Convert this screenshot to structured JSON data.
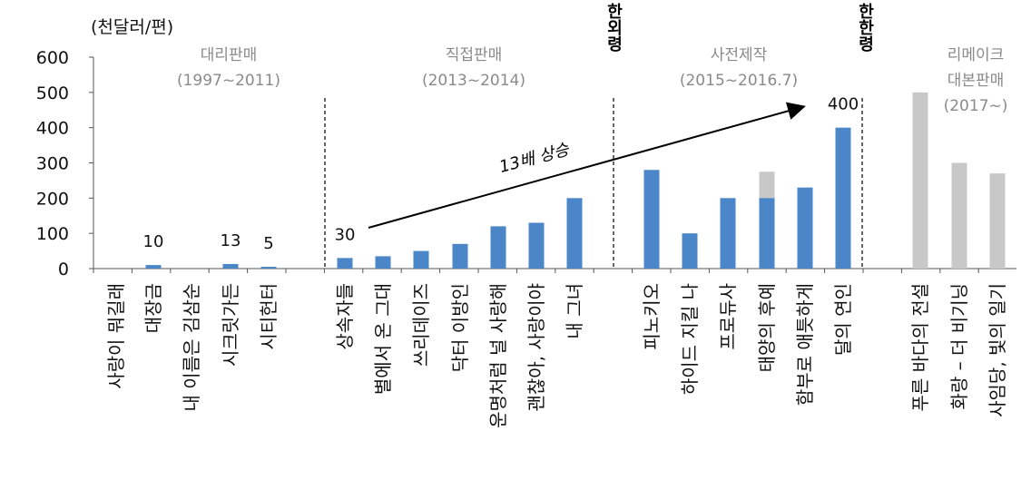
{
  "chart_data": {
    "type": "bar",
    "unit_label": "(천달러/편)",
    "ylim": [
      0,
      600
    ],
    "yticks": [
      0,
      100,
      200,
      300,
      400,
      500,
      600
    ],
    "colors": {
      "blue": "#4a86c8",
      "gray": "#c8c8c8"
    },
    "categories": [
      "사랑이 뭐길래",
      "대장금",
      "내 이름은 김삼순",
      "시크릿가든",
      "시티헌터",
      "상속자들",
      "별에서 온 그대",
      "쓰리데이즈",
      "닥터 이방인",
      "운명처럼 널 사랑해",
      "괜찮아, 사랑이야",
      "내 그녀",
      "피노키오",
      "하이드 지킬 나",
      "프로듀사",
      "태양의 후예",
      "함부로 애틋하게",
      "달의 연인",
      "푸른 바다의 전설",
      "화랑 – 더 비기닝",
      "사임당, 빛의 일기"
    ],
    "series": [
      {
        "values": [
          0,
          10,
          0,
          13,
          5,
          30,
          35,
          50,
          70,
          120,
          130,
          200,
          280,
          100,
          200,
          200,
          230,
          400,
          0,
          0,
          0
        ]
      },
      {
        "values": [
          0,
          0,
          0,
          0,
          0,
          0,
          0,
          0,
          0,
          0,
          0,
          0,
          0,
          0,
          0,
          275,
          0,
          0,
          500,
          300,
          270
        ]
      }
    ],
    "data_labels": [
      {
        "category": "대장금",
        "text": "10"
      },
      {
        "category": "시크릿가든",
        "text": "13"
      },
      {
        "category": "시티헌터",
        "text": "5"
      },
      {
        "category": "상속자들",
        "text": "30"
      },
      {
        "category": "달의 연인",
        "text": "400"
      }
    ],
    "periods": [
      {
        "name": "대리판매",
        "years": "(1997~2011)"
      },
      {
        "name": "직접판매",
        "years": "(2013~2014)"
      },
      {
        "name": "사전제작",
        "years": "(2015~2016.7)"
      },
      {
        "name": "리메이크",
        "name2": "대본판매",
        "years": "(2017~)"
      }
    ],
    "events": [
      "한외령",
      "한한령"
    ],
    "annotation": "13배 상승",
    "title": "",
    "xlabel": "",
    "ylabel": ""
  }
}
